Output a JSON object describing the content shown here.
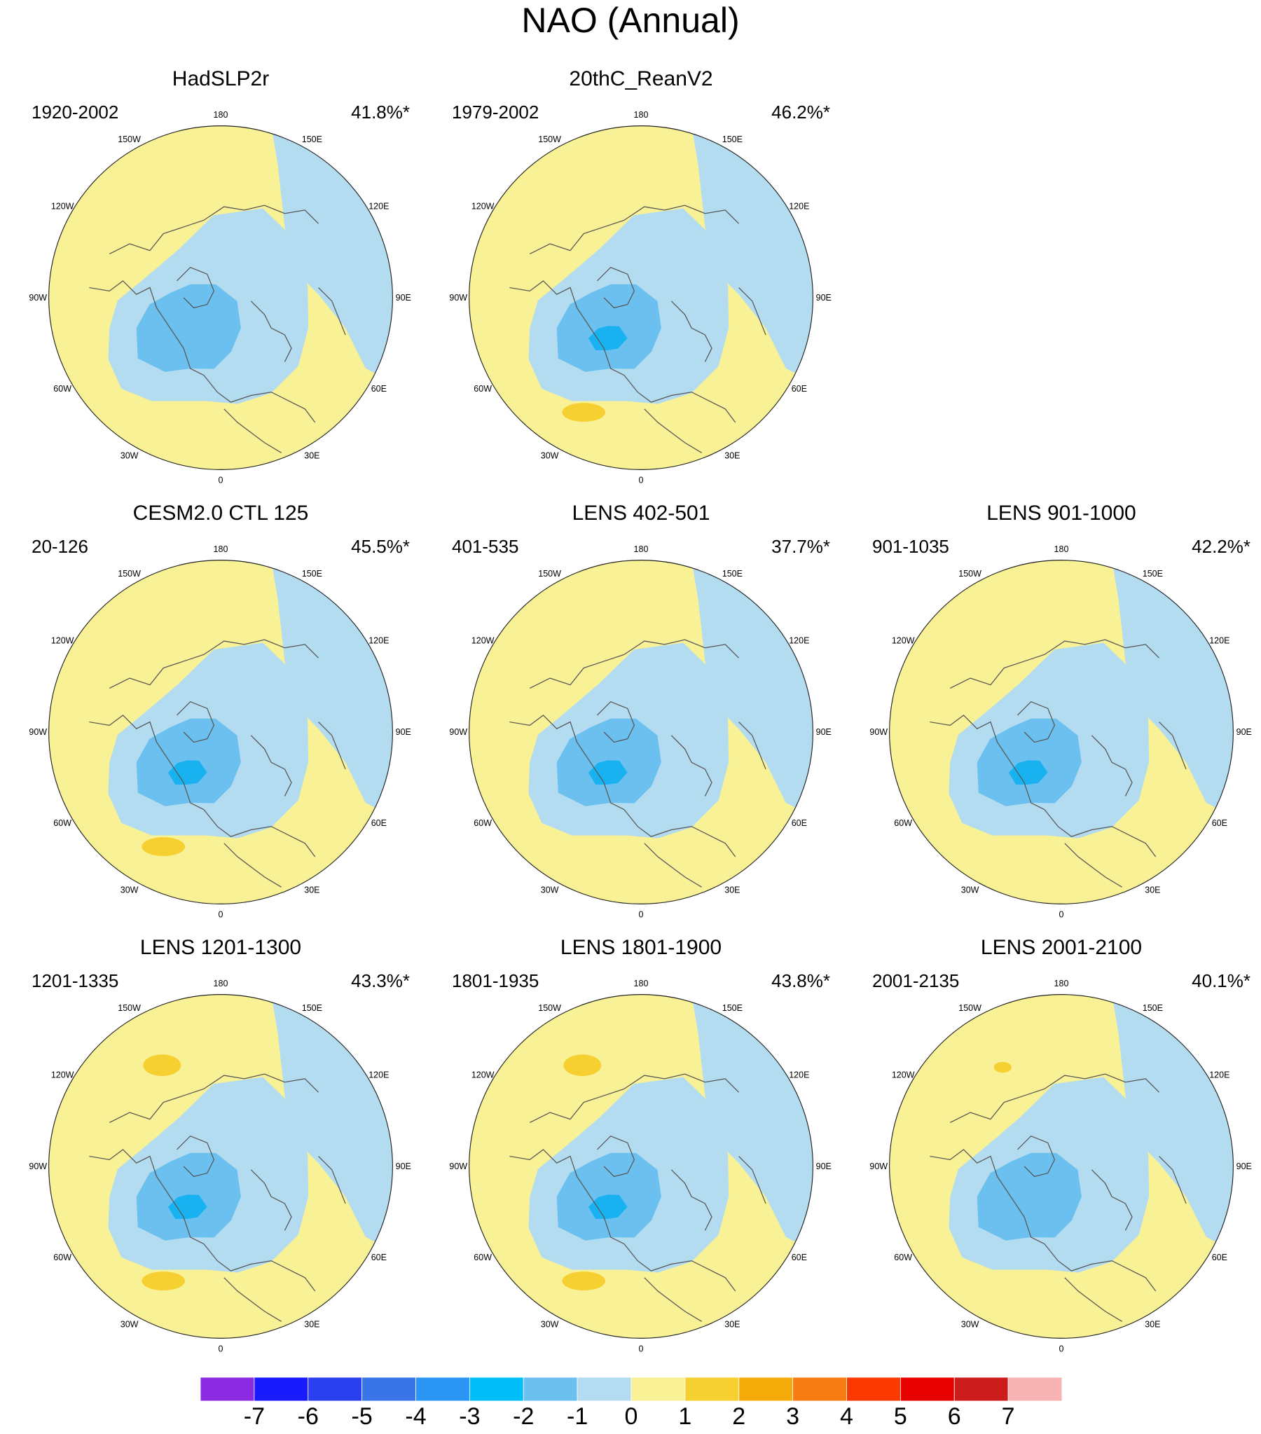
{
  "title": "NAO (Annual)",
  "colors": {
    "yellow": "#f9f195",
    "yellow_dark": "#f6cf30",
    "blue1": "#b3dcf0",
    "blue2": "#6cc0ef",
    "blue3": "#19b2f0",
    "ocean_line": "#222222",
    "coast": "#555555"
  },
  "panels": [
    {
      "title": "HadSLP2r",
      "years": "1920-2002",
      "variance": "41.8%*",
      "core": false,
      "anomalies": []
    },
    {
      "title": "20thC_ReanV2",
      "years": "1979-2002",
      "variance": "46.2%*",
      "core": true,
      "anomalies": [
        "atlantic"
      ]
    },
    {
      "title": "CESM2.0 CTL 125",
      "years": "20-126",
      "variance": "45.5%*",
      "core": true,
      "anomalies": [
        "atlantic"
      ]
    },
    {
      "title": "LENS 402-501",
      "years": "401-535",
      "variance": "37.7%*",
      "core": true,
      "anomalies": []
    },
    {
      "title": "LENS 901-1000",
      "years": "901-1035",
      "variance": "42.2%*",
      "core": true,
      "anomalies": []
    },
    {
      "title": "LENS 1201-1300",
      "years": "1201-1335",
      "variance": "43.3%*",
      "core": true,
      "anomalies": [
        "pacific",
        "atlantic"
      ]
    },
    {
      "title": "LENS 1801-1900",
      "years": "1801-1935",
      "variance": "43.8%*",
      "core": true,
      "anomalies": [
        "pacific",
        "atlantic"
      ]
    },
    {
      "title": "LENS 2001-2100",
      "years": "2001-2135",
      "variance": "40.1%*",
      "core": false,
      "anomalies": [
        "pacific_small"
      ]
    }
  ],
  "lon_labels": {
    "top": "180",
    "bottom": "0",
    "left": [
      "150W",
      "120W",
      "90W",
      "60W",
      "30W"
    ],
    "right": [
      "150E",
      "120E",
      "90E",
      "60E",
      "30E"
    ]
  },
  "colorbar": {
    "colors": [
      "#8a2be2",
      "#1a1aff",
      "#2a3ff0",
      "#3a75e8",
      "#2a95f5",
      "#00bff8",
      "#6cc0ef",
      "#b3dcf0",
      "#f9f195",
      "#f6cf30",
      "#f5ac0b",
      "#f77c12",
      "#fa3a00",
      "#e60000",
      "#cc1c1c",
      "#f8b4b4"
    ],
    "labels": [
      "-7",
      "-6",
      "-5",
      "-4",
      "-3",
      "-2",
      "-1",
      "0",
      "1",
      "2",
      "3",
      "4",
      "5",
      "6",
      "7"
    ]
  }
}
